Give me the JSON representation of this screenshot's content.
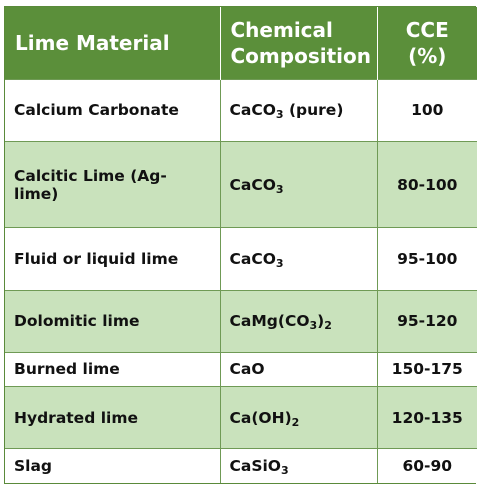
{
  "table": {
    "headers": [
      "Lime Material",
      "Chemical Composition",
      "CCE (%)"
    ],
    "header_bg": "#5b8f3a",
    "shade_bg": "#c9e2bc",
    "rows": [
      {
        "material": "Calcium Carbonate",
        "composition": {
          "pre": "CaCO",
          "sub": "3",
          "post": " (pure)"
        },
        "cce": "100"
      },
      {
        "material": "Calcitic Lime (Ag-lime)",
        "composition": {
          "pre": "CaCO",
          "sub": "3",
          "post": ""
        },
        "cce": "80-100"
      },
      {
        "material": "Fluid or liquid lime",
        "composition": {
          "pre": "CaCO",
          "sub": "3",
          "post": ""
        },
        "cce": "95-100"
      },
      {
        "material": "Dolomitic lime",
        "composition": {
          "pre": "CaMg(CO",
          "sub": "3",
          "post": ")",
          "sub2": "2"
        },
        "cce": "95-120"
      },
      {
        "material": "Burned lime",
        "composition": {
          "pre": "CaO",
          "sub": "",
          "post": ""
        },
        "cce": "150-175"
      },
      {
        "material": "Hydrated lime",
        "composition": {
          "pre": "Ca(OH)",
          "sub": "2",
          "post": ""
        },
        "cce": "120-135"
      },
      {
        "material": "Slag",
        "composition": {
          "pre": "CaSiO",
          "sub": "3",
          "post": ""
        },
        "cce": "60-90"
      }
    ]
  }
}
